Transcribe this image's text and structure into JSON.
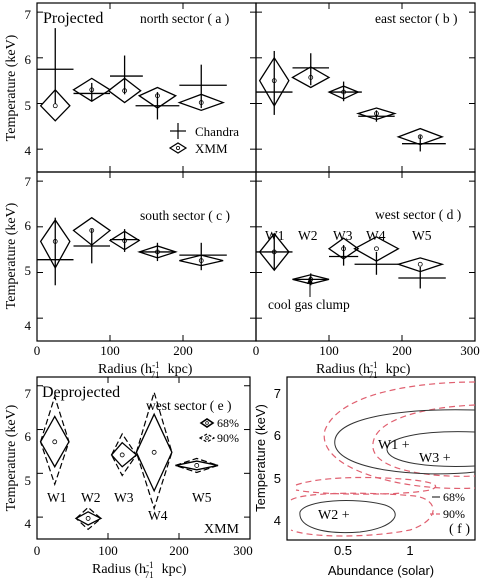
{
  "shared": {
    "xlabel": "Radius (h",
    "xlabel_sub": "71",
    "xlabel_sup": "-1",
    "xlabel_tail": "kpc)",
    "ylabel": "Temperature (keV)",
    "x_ticks": [
      "0",
      "100",
      "200",
      "300"
    ],
    "y_ticks": [
      "4",
      "5",
      "6",
      "7"
    ],
    "legend_chandra": "Chandra",
    "legend_xmm": "XMM",
    "legend_68": "68%",
    "legend_90": "90%"
  },
  "chart_data": [
    {
      "type": "scatter",
      "panel": "a",
      "label": "north sector ( a )",
      "corner_text": "Projected",
      "xlim": [
        0,
        300
      ],
      "ylim": [
        3.5,
        7.2
      ],
      "chandra": [
        {
          "x": 25,
          "y": 5.75,
          "xerr": [
            0,
            50
          ],
          "yerr": [
            5.0,
            6.65
          ]
        },
        {
          "x": 75,
          "y": 5.22,
          "xerr": [
            50,
            100
          ],
          "yerr": [
            5.05,
            5.45
          ]
        },
        {
          "x": 120,
          "y": 5.6,
          "xerr": [
            100,
            145
          ],
          "yerr": [
            5.2,
            6.05
          ]
        },
        {
          "x": 165,
          "y": 4.95,
          "xerr": [
            135,
            195
          ],
          "yerr": [
            4.65,
            5.25
          ]
        },
        {
          "x": 225,
          "y": 5.4,
          "xerr": [
            195,
            260
          ],
          "yerr": [
            4.9,
            5.85
          ]
        }
      ],
      "xmm": [
        {
          "x": 25,
          "y": 4.95,
          "xerr": [
            5,
            45
          ],
          "yerr": [
            4.62,
            5.3
          ]
        },
        {
          "x": 75,
          "y": 5.3,
          "xerr": [
            50,
            100
          ],
          "yerr": [
            5.05,
            5.55
          ]
        },
        {
          "x": 120,
          "y": 5.28,
          "xerr": [
            98,
            142
          ],
          "yerr": [
            5.02,
            5.55
          ]
        },
        {
          "x": 165,
          "y": 5.17,
          "xerr": [
            140,
            190
          ],
          "yerr": [
            4.9,
            5.35
          ]
        },
        {
          "x": 225,
          "y": 5.02,
          "xerr": [
            195,
            255
          ],
          "yerr": [
            4.85,
            5.2
          ]
        }
      ]
    },
    {
      "type": "scatter",
      "panel": "b",
      "label": "east sector ( b )",
      "xlim": [
        0,
        300
      ],
      "ylim": [
        3.5,
        7.2
      ],
      "chandra": [
        {
          "x": 25,
          "y": 5.25,
          "xerr": [
            0,
            50
          ],
          "yerr": [
            4.75,
            6.15
          ]
        },
        {
          "x": 75,
          "y": 5.78,
          "xerr": [
            50,
            100
          ],
          "yerr": [
            5.4,
            6.1
          ]
        },
        {
          "x": 120,
          "y": 5.25,
          "xerr": [
            100,
            145
          ],
          "yerr": [
            5.05,
            5.48
          ]
        },
        {
          "x": 165,
          "y": 4.72,
          "xerr": [
            140,
            190
          ],
          "yerr": [
            4.6,
            4.85
          ]
        },
        {
          "x": 225,
          "y": 4.12,
          "xerr": [
            200,
            260
          ],
          "yerr": [
            3.95,
            4.3
          ]
        }
      ],
      "xmm": [
        {
          "x": 25,
          "y": 5.5,
          "xerr": [
            5,
            45
          ],
          "yerr": [
            4.95,
            6.0
          ]
        },
        {
          "x": 75,
          "y": 5.57,
          "xerr": [
            50,
            100
          ],
          "yerr": [
            5.35,
            5.8
          ]
        },
        {
          "x": 120,
          "y": 5.25,
          "xerr": [
            100,
            140
          ],
          "yerr": [
            5.1,
            5.38
          ]
        },
        {
          "x": 165,
          "y": 4.78,
          "xerr": [
            140,
            190
          ],
          "yerr": [
            4.65,
            4.9
          ]
        },
        {
          "x": 225,
          "y": 4.27,
          "xerr": [
            195,
            255
          ],
          "yerr": [
            4.1,
            4.45
          ]
        }
      ]
    },
    {
      "type": "scatter",
      "panel": "c",
      "label": "south sector ( c )",
      "xlim": [
        0,
        300
      ],
      "ylim": [
        3.5,
        7.2
      ],
      "chandra": [
        {
          "x": 25,
          "y": 5.28,
          "xerr": [
            0,
            50
          ],
          "yerr": [
            4.72,
            6.2
          ]
        },
        {
          "x": 75,
          "y": 5.58,
          "xerr": [
            50,
            100
          ],
          "yerr": [
            5.2,
            5.95
          ]
        },
        {
          "x": 120,
          "y": 5.72,
          "xerr": [
            100,
            140
          ],
          "yerr": [
            5.45,
            5.95
          ]
        },
        {
          "x": 165,
          "y": 5.45,
          "xerr": [
            140,
            190
          ],
          "yerr": [
            5.25,
            5.65
          ]
        },
        {
          "x": 225,
          "y": 5.38,
          "xerr": [
            195,
            260
          ],
          "yerr": [
            5.05,
            5.65
          ]
        }
      ],
      "xmm": [
        {
          "x": 25,
          "y": 5.68,
          "xerr": [
            5,
            45
          ],
          "yerr": [
            5.1,
            6.15
          ]
        },
        {
          "x": 75,
          "y": 5.92,
          "xerr": [
            50,
            100
          ],
          "yerr": [
            5.6,
            6.2
          ]
        },
        {
          "x": 120,
          "y": 5.7,
          "xerr": [
            100,
            140
          ],
          "yerr": [
            5.5,
            5.9
          ]
        },
        {
          "x": 165,
          "y": 5.45,
          "xerr": [
            140,
            190
          ],
          "yerr": [
            5.32,
            5.58
          ]
        },
        {
          "x": 225,
          "y": 5.26,
          "xerr": [
            195,
            255
          ],
          "yerr": [
            5.15,
            5.38
          ]
        }
      ]
    },
    {
      "type": "scatter",
      "panel": "d",
      "label": "west sector ( d )",
      "annotation": "cool gas clump",
      "point_labels": [
        "W1",
        "W2",
        "W3",
        "W4",
        "W5"
      ],
      "xlim": [
        0,
        300
      ],
      "ylim": [
        3.5,
        7.2
      ],
      "chandra": [
        {
          "x": 25,
          "y": 5.45,
          "xerr": [
            0,
            50
          ],
          "yerr": [
            5.05,
            5.85
          ]
        },
        {
          "x": 75,
          "y": 4.85,
          "xerr": [
            50,
            100
          ],
          "yerr": [
            4.72,
            4.98
          ]
        },
        {
          "x": 120,
          "y": 5.35,
          "xerr": [
            100,
            140
          ],
          "yerr": [
            5.15,
            5.6
          ]
        },
        {
          "x": 165,
          "y": 5.18,
          "xerr": [
            135,
            195
          ],
          "yerr": [
            4.95,
            5.45
          ]
        },
        {
          "x": 225,
          "y": 4.88,
          "xerr": [
            195,
            260
          ],
          "yerr": [
            4.65,
            5.12
          ]
        }
      ],
      "xmm": [
        {
          "x": 25,
          "y": 5.45,
          "xerr": [
            5,
            45
          ],
          "yerr": [
            5.05,
            5.85
          ]
        },
        {
          "x": 75,
          "y": 4.85,
          "xerr": [
            50,
            100
          ],
          "yerr": [
            4.75,
            4.95
          ]
        },
        {
          "x": 120,
          "y": 5.52,
          "xerr": [
            100,
            140
          ],
          "yerr": [
            5.3,
            5.75
          ]
        },
        {
          "x": 165,
          "y": 5.52,
          "xerr": [
            135,
            195
          ],
          "yerr": [
            5.25,
            5.78
          ]
        },
        {
          "x": 225,
          "y": 5.18,
          "xerr": [
            195,
            255
          ],
          "yerr": [
            5.02,
            5.32
          ]
        }
      ]
    },
    {
      "type": "scatter",
      "panel": "e",
      "label": "west sector ( e )",
      "corner_text": "Deprojected",
      "instrument": "XMM",
      "point_labels": [
        "W1",
        "W2",
        "W3",
        "W4",
        "W5"
      ],
      "xlim": [
        0,
        300
      ],
      "ylim": [
        3.5,
        7.2
      ],
      "xmm_68": [
        {
          "x": 25,
          "y": 5.72,
          "xerr": [
            5,
            45
          ],
          "yerr": [
            5.15,
            6.3
          ]
        },
        {
          "x": 72,
          "y": 3.97,
          "xerr": [
            55,
            90
          ],
          "yerr": [
            3.82,
            4.12
          ]
        },
        {
          "x": 120,
          "y": 5.42,
          "xerr": [
            105,
            140
          ],
          "yerr": [
            5.15,
            5.7
          ]
        },
        {
          "x": 165,
          "y": 5.48,
          "xerr": [
            140,
            190
          ],
          "yerr": [
            4.6,
            6.35
          ]
        },
        {
          "x": 225,
          "y": 5.18,
          "xerr": [
            195,
            255
          ],
          "yerr": [
            5.08,
            5.28
          ]
        }
      ],
      "xmm_90": [
        {
          "x": 25,
          "yerr": [
            4.75,
            6.75
          ]
        },
        {
          "x": 72,
          "yerr": [
            3.72,
            4.22
          ]
        },
        {
          "x": 120,
          "yerr": [
            4.95,
            5.9
          ]
        },
        {
          "x": 165,
          "yerr": [
            4.2,
            6.85
          ]
        },
        {
          "x": 225,
          "yerr": [
            5.02,
            5.34
          ]
        }
      ]
    },
    {
      "type": "contour",
      "panel": "f",
      "label": "( f )",
      "xlabel": "Abundance (solar)",
      "x_ticks": [
        "0.5",
        "1"
      ],
      "xlim": [
        0.25,
        1.5
      ],
      "ylim": [
        3.5,
        7.2
      ],
      "points": [
        {
          "name": "W1",
          "x": 0.85,
          "y": 5.55
        },
        {
          "name": "W3",
          "x": 1.22,
          "y": 5.2
        },
        {
          "name": "W2",
          "x": 0.45,
          "y": 3.95
        }
      ],
      "legend_solid": "68%",
      "legend_dashed": "90%",
      "dashed_color": "#e06070"
    }
  ]
}
